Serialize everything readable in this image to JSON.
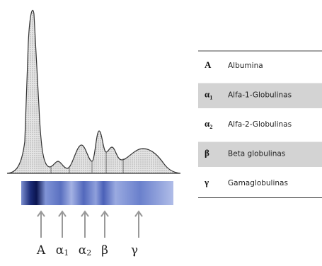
{
  "peaks": [
    {
      "symbol": "A"
    },
    {
      "symbol": "α",
      "sub": "1"
    },
    {
      "symbol": "α",
      "sub": "2"
    },
    {
      "symbol": "β"
    },
    {
      "symbol": "γ"
    }
  ],
  "table": {
    "rows": [
      {
        "symbol": "A",
        "name": "Albumina"
      },
      {
        "symbol": "α",
        "sub": "1",
        "name": "Alfa-1-Globulinas"
      },
      {
        "symbol": "α",
        "sub": "2",
        "name": "Alfa-2-Globulinas"
      },
      {
        "symbol": "β",
        "name": "Beta globulinas"
      },
      {
        "symbol": "γ",
        "name": "Gamaglobulinas"
      }
    ]
  }
}
